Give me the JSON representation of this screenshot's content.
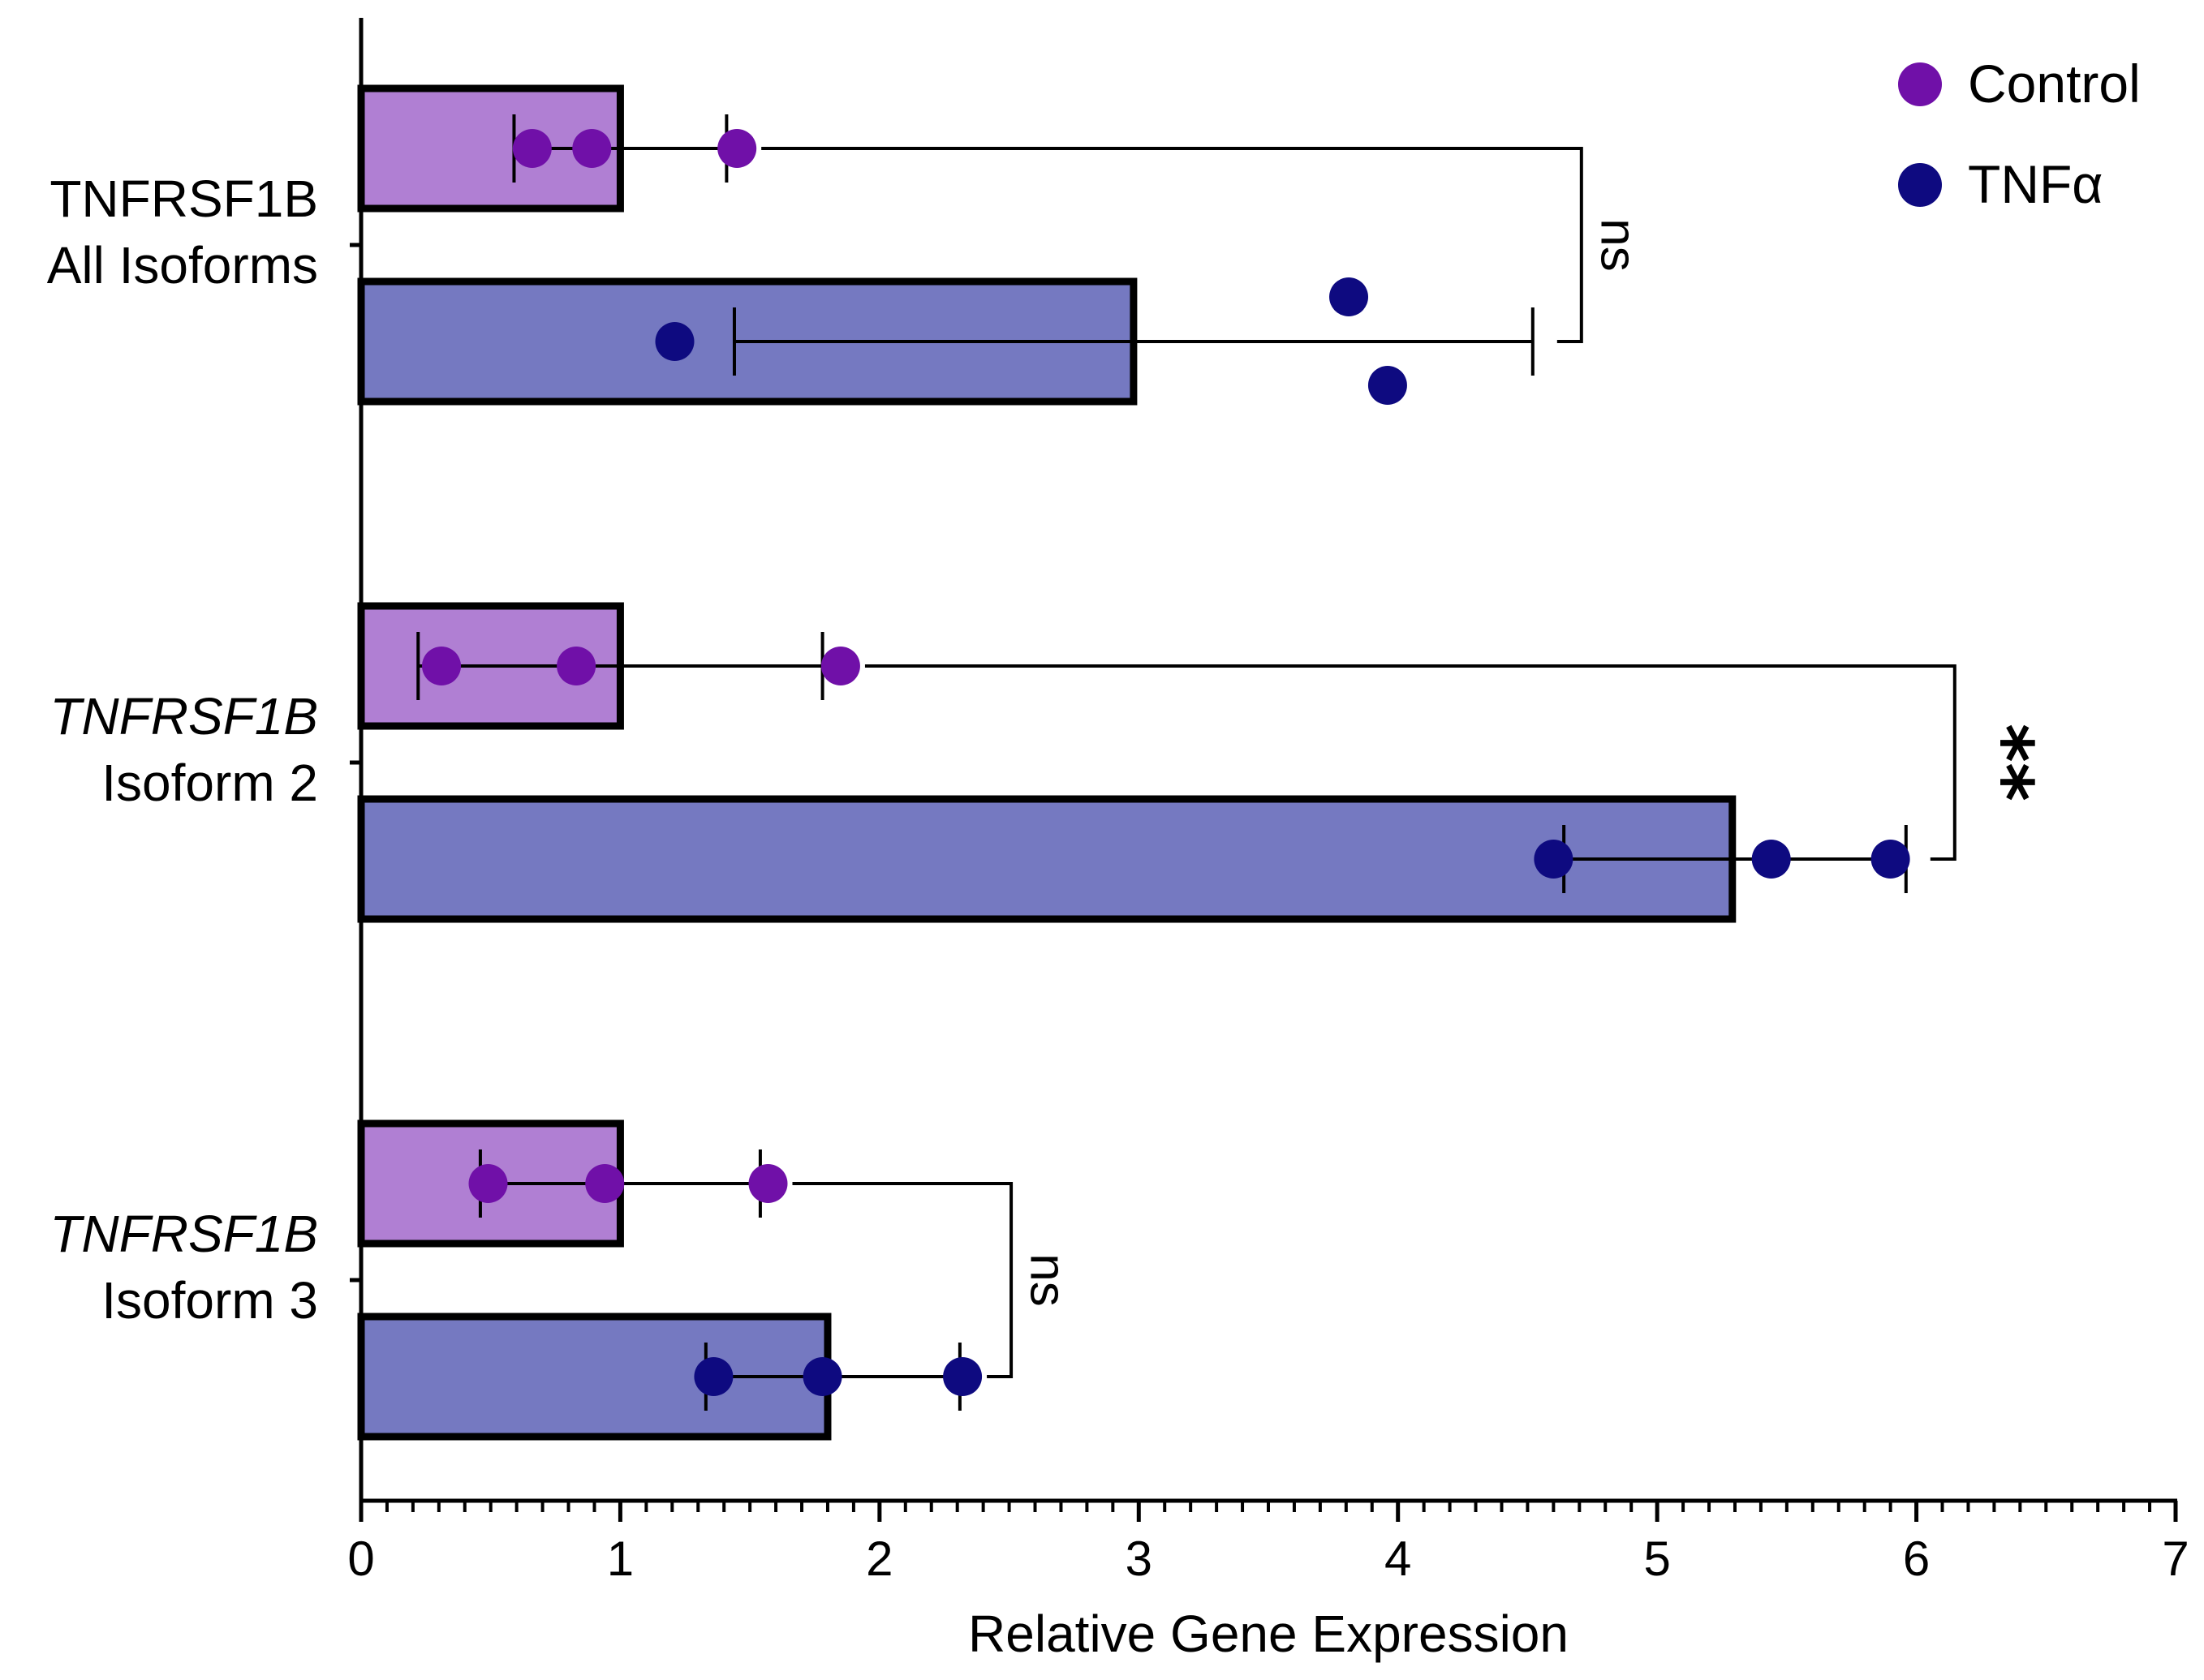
{
  "chart_data": {
    "type": "bar",
    "orientation": "horizontal",
    "xlabel": "Relative Gene Expression",
    "xlim": [
      0,
      7
    ],
    "x_major_ticks": [
      0,
      1,
      2,
      3,
      4,
      5,
      6,
      7
    ],
    "x_minor_step": 0.1,
    "legend_position": "top-right",
    "colors": {
      "Control_bar": "#b07fd3",
      "Control_point": "#7010a8",
      "TNFa_bar": "#7579c1",
      "TNFa_point": "#0e0a80"
    },
    "groups": [
      {
        "id": "all",
        "label_line1": "TNFRSF1B",
        "label_line2": "All Isoforms",
        "italic_line1": false,
        "significance": "ns",
        "bars": [
          {
            "series": "Control",
            "value": 1.0,
            "error": [
              0.59,
              1.41
            ],
            "points": [
              0.66,
              0.89,
              1.45
            ]
          },
          {
            "series": "TNFα",
            "value": 2.98,
            "error": [
              1.44,
              4.52
            ],
            "points": [
              1.21,
              3.81,
              3.96
            ]
          }
        ]
      },
      {
        "id": "iso2",
        "label_line1": "TNFRSF1B",
        "label_line2": "Isoform 2",
        "italic_line1": true,
        "significance": "**",
        "bars": [
          {
            "series": "Control",
            "value": 1.0,
            "error": [
              0.22,
              1.78
            ],
            "points": [
              0.31,
              0.83,
              1.85
            ]
          },
          {
            "series": "TNFα",
            "value": 5.29,
            "error": [
              4.64,
              5.96
            ],
            "points": [
              4.6,
              5.44,
              5.9
            ]
          }
        ]
      },
      {
        "id": "iso3",
        "label_line1": "TNFRSF1B",
        "label_line2": "Isoform 3",
        "italic_line1": true,
        "significance": "ns",
        "bars": [
          {
            "series": "Control",
            "value": 1.0,
            "error": [
              0.46,
              1.54
            ],
            "points": [
              0.49,
              0.94,
              1.57
            ]
          },
          {
            "series": "TNFα",
            "value": 1.8,
            "error": [
              1.33,
              2.31
            ],
            "points": [
              1.36,
              1.78,
              2.32
            ]
          }
        ]
      }
    ],
    "legend": [
      {
        "series": "Control",
        "label": "Control"
      },
      {
        "series": "TNFα",
        "label": "TNFα"
      }
    ]
  }
}
